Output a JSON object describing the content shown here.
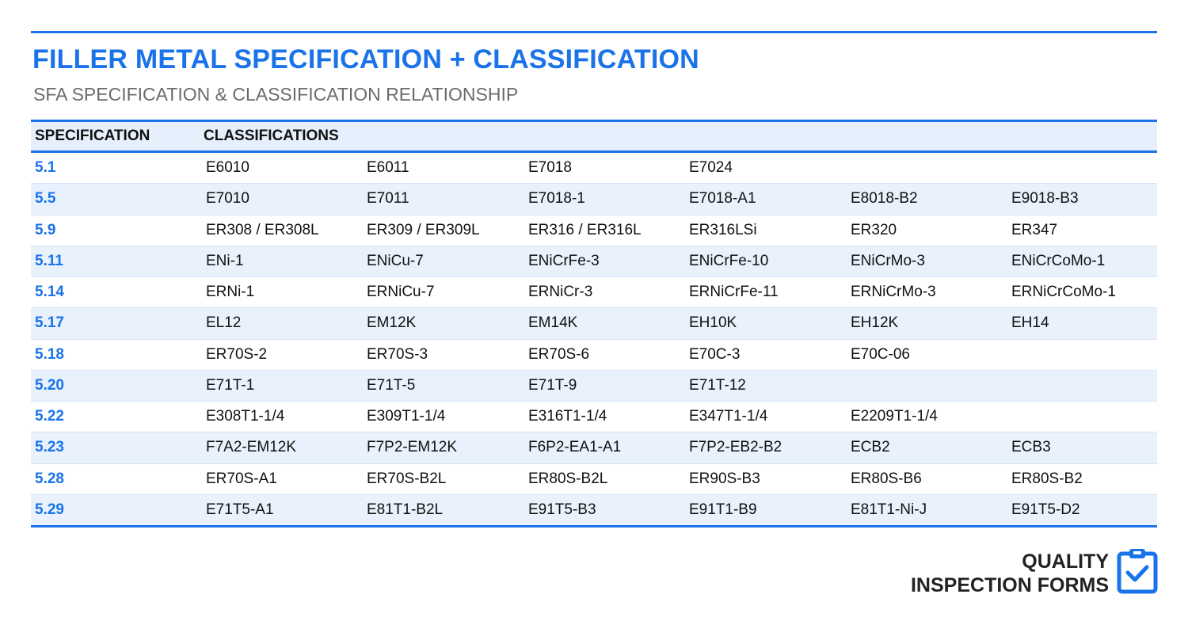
{
  "header": {
    "title": "FILLER METAL SPECIFICATION + CLASSIFICATION",
    "subtitle": "SFA SPECIFICATION & CLASSIFICATION RELATIONSHIP"
  },
  "table": {
    "columns": [
      "SPECIFICATION",
      "CLASSIFICATIONS"
    ],
    "rows": [
      {
        "spec": "5.1",
        "classes": [
          "E6010",
          "E6011",
          "E7018",
          "E7024",
          "",
          ""
        ]
      },
      {
        "spec": "5.5",
        "classes": [
          "E7010",
          "E7011",
          "E7018-1",
          "E7018-A1",
          "E8018-B2",
          "E9018-B3"
        ]
      },
      {
        "spec": "5.9",
        "classes": [
          "ER308 / ER308L",
          "ER309 / ER309L",
          "ER316 / ER316L",
          "ER316LSi",
          "ER320",
          "ER347"
        ]
      },
      {
        "spec": "5.11",
        "classes": [
          "ENi-1",
          "ENiCu-7",
          "ENiCrFe-3",
          "ENiCrFe-10",
          "ENiCrMo-3",
          "ENiCrCoMo-1"
        ]
      },
      {
        "spec": "5.14",
        "classes": [
          "ERNi-1",
          "ERNiCu-7",
          "ERNiCr-3",
          "ERNiCrFe-11",
          "ERNiCrMo-3",
          "ERNiCrCoMo-1"
        ]
      },
      {
        "spec": "5.17",
        "classes": [
          "EL12",
          "EM12K",
          "EM14K",
          "EH10K",
          "EH12K",
          "EH14"
        ]
      },
      {
        "spec": "5.18",
        "classes": [
          "ER70S-2",
          "ER70S-3",
          "ER70S-6",
          "E70C-3",
          "E70C-06",
          ""
        ]
      },
      {
        "spec": "5.20",
        "classes": [
          "E71T-1",
          "E71T-5",
          "E71T-9",
          "E71T-12",
          "",
          ""
        ]
      },
      {
        "spec": "5.22",
        "classes": [
          "E308T1-1/4",
          "E309T1-1/4",
          "E316T1-1/4",
          "E347T1-1/4",
          "E2209T1-1/4",
          ""
        ]
      },
      {
        "spec": "5.23",
        "classes": [
          "F7A2-EM12K",
          "F7P2-EM12K",
          "F6P2-EA1-A1",
          "F7P2-EB2-B2",
          "ECB2",
          "ECB3"
        ]
      },
      {
        "spec": "5.28",
        "classes": [
          "ER70S-A1",
          "ER70S-B2L",
          "ER80S-B2L",
          "ER90S-B3",
          "ER80S-B6",
          "ER80S-B2"
        ]
      },
      {
        "spec": "5.29",
        "classes": [
          "E71T5-A1",
          "E81T1-B2L",
          "E91T5-B3",
          "E91T1-B9",
          "E81T1-Ni-J",
          "E91T5-D2"
        ]
      }
    ]
  },
  "brand": {
    "line1": "QUALITY",
    "line2": "INSPECTION FORMS",
    "icon": "clipboard-check-icon"
  },
  "colors": {
    "accent": "#1a73e8",
    "row_alt": "#e8f1fc",
    "subtitle": "#6b6b6b"
  }
}
